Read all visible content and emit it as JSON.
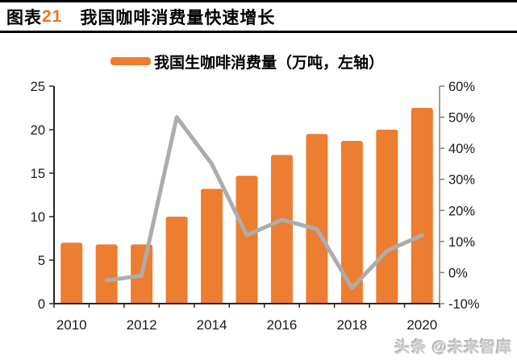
{
  "header": {
    "prefix": "图表",
    "number": "21",
    "title": "我国咖啡消费量快速增长"
  },
  "legend": {
    "series_label": "我国生咖啡消费量（万吨，左轴）"
  },
  "watermark": "头条 @未来智库",
  "colors": {
    "bar": "#ED7D31",
    "line": "#ACACAC",
    "axis": "#262626",
    "right_axis": "#7F7F7F",
    "tick_text": "#1a1a1a",
    "accent_number": "#E87722"
  },
  "chart_data": {
    "type": "bar+line",
    "title": "我国咖啡消费量快速增长",
    "categories": [
      "2010",
      "2011",
      "2012",
      "2013",
      "2014",
      "2015",
      "2016",
      "2017",
      "2018",
      "2019",
      "2020"
    ],
    "series": [
      {
        "name": "我国生咖啡消费量（万吨，左轴）",
        "type": "bar",
        "axis": "left",
        "values": [
          7.0,
          6.8,
          6.8,
          10.0,
          13.2,
          14.7,
          17.1,
          19.5,
          18.7,
          20.0,
          22.5
        ]
      },
      {
        "name": "",
        "type": "line",
        "axis": "right",
        "values": [
          null,
          -2.5,
          -1.0,
          50.0,
          35.0,
          12.0,
          17.0,
          14.0,
          -5.0,
          7.0,
          12.0
        ]
      }
    ],
    "left_axis": {
      "min": 0,
      "max": 25,
      "step": 5,
      "tick_labels": [
        "0",
        "5",
        "10",
        "15",
        "20",
        "25"
      ]
    },
    "right_axis": {
      "min": -10,
      "max": 60,
      "step": 10,
      "tick_labels": [
        "-10%",
        "0%",
        "10%",
        "20%",
        "30%",
        "40%",
        "50%",
        "60%"
      ]
    },
    "x_tick_labels": [
      "2010",
      "2012",
      "2014",
      "2016",
      "2018",
      "2020"
    ],
    "grid": false,
    "legend_position": "top"
  }
}
